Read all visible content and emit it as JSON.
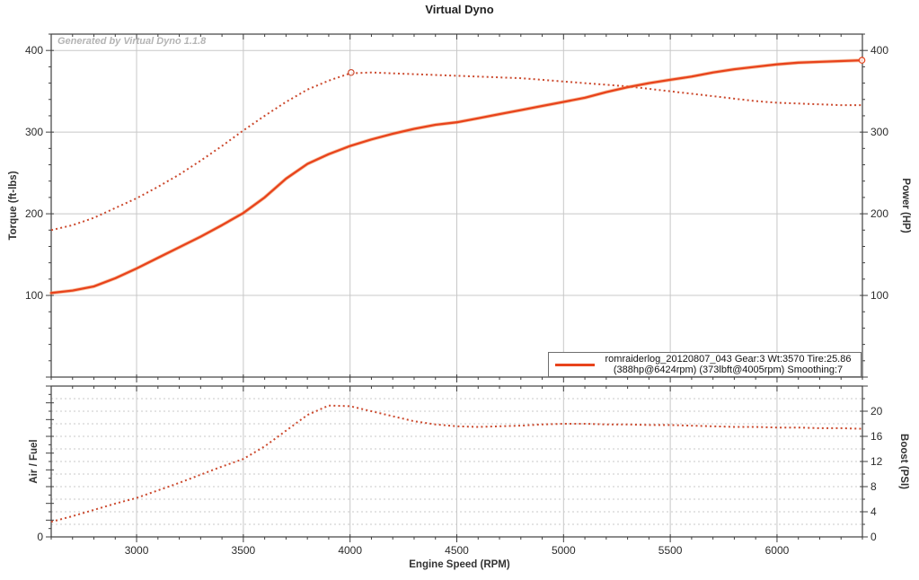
{
  "title": "Virtual Dyno",
  "watermark": "Generated by Virtual Dyno 1.1.8",
  "legend": {
    "line1": "romraiderlog_20120807_043 Gear:3 Wt:3570 Tire:25.86",
    "line2": "(388hp@6424rpm) (373lbft@4005rpm) Smoothing:7"
  },
  "axes": {
    "torque_label": "Torque (ft-lbs)",
    "power_label": "Power (HP)",
    "afr_label": "Air / Fuel",
    "boost_label": "Boost (PSI)",
    "x_label": "Engine Speed (RPM)"
  },
  "colors": {
    "power_line": "#e8431c",
    "power_halo": "#f2935c",
    "torque_line": "#cc4a2e",
    "boost_line": "#cc4a2e",
    "grid": "#c8c8c8",
    "grid_dashed": "#c9c9c9",
    "axis": "#3f3f3f",
    "tick_text": "#2b2b2b",
    "title_text": "#222222",
    "watermark_text": "#b4b4b4"
  },
  "chart_data": [
    {
      "type": "line",
      "title": "Virtual Dyno",
      "x": {
        "label": "Engine Speed (RPM)",
        "range": [
          2600,
          6400
        ],
        "major": 500,
        "minor": 100,
        "labels": [],
        "show_labels": false
      },
      "y_left": {
        "label": "Torque (ft-lbs)",
        "range": [
          0,
          420
        ],
        "major": 100,
        "minor": 20,
        "labels": [
          100,
          200,
          300,
          400
        ]
      },
      "y_right": {
        "label": "Power (HP)",
        "range": [
          0,
          420
        ],
        "major": 100,
        "minor": 20,
        "labels": [
          100,
          200,
          300,
          400
        ]
      },
      "grid_y": {
        "axis": "left",
        "step": 100,
        "style": "solid"
      },
      "legend_position": "bottom-right",
      "series": [
        {
          "name": "torque",
          "style": "dotted",
          "axis": "left",
          "x_start": 2600,
          "x_step": 100,
          "values": [
            180,
            186,
            195,
            207,
            219,
            233,
            248,
            265,
            283,
            302,
            320,
            337,
            352,
            363,
            372,
            373,
            372,
            371,
            370,
            369,
            368,
            367,
            366,
            364,
            362,
            360,
            358,
            356,
            353,
            350,
            347,
            344,
            341,
            338,
            336,
            335,
            334,
            333,
            333
          ],
          "peak": {
            "x": 4005,
            "y": 373,
            "label": "373lbft@4005rpm"
          }
        },
        {
          "name": "power",
          "style": "solid",
          "axis": "left",
          "x_start": 2600,
          "x_step": 100,
          "values": [
            103,
            106,
            111,
            121,
            133,
            146,
            159,
            172,
            186,
            201,
            220,
            243,
            261,
            273,
            283,
            291,
            298,
            304,
            309,
            312,
            317,
            322,
            327,
            332,
            337,
            342,
            349,
            355,
            360,
            364,
            368,
            373,
            377,
            380,
            383,
            385,
            386,
            387,
            388
          ],
          "peak": {
            "x": 6398,
            "y": 388,
            "label": "388hp@6424rpm"
          }
        }
      ]
    },
    {
      "type": "line",
      "x": {
        "label": "Engine Speed (RPM)",
        "range": [
          2600,
          6400
        ],
        "major": 500,
        "minor": 100,
        "labels": [
          3000,
          3500,
          4000,
          4500,
          5000,
          5500,
          6000
        ],
        "show_labels": true
      },
      "y_left": {
        "label": "Air / Fuel",
        "range": [
          0,
          18
        ],
        "major": 2,
        "minor": 1,
        "labels": [
          0
        ]
      },
      "y_right": {
        "label": "Boost (PSI)",
        "range": [
          0,
          24
        ],
        "major": 4,
        "minor": 2,
        "labels": [
          0,
          4,
          8,
          12,
          16,
          20
        ]
      },
      "grid_y": {
        "axis": "right",
        "step": 2,
        "style": "dashed"
      },
      "series": [
        {
          "name": "boost",
          "style": "dotted",
          "axis": "right",
          "x_start": 2600,
          "x_step": 100,
          "values": [
            2.4,
            3.3,
            4.3,
            5.3,
            6.2,
            7.4,
            8.6,
            9.9,
            11.2,
            12.4,
            14.4,
            16.9,
            19.4,
            20.9,
            20.8,
            20.0,
            19.2,
            18.4,
            17.9,
            17.6,
            17.5,
            17.6,
            17.7,
            17.9,
            18.0,
            18.0,
            17.9,
            17.9,
            17.8,
            17.8,
            17.7,
            17.6,
            17.5,
            17.5,
            17.4,
            17.4,
            17.3,
            17.3,
            17.2
          ]
        }
      ]
    }
  ]
}
